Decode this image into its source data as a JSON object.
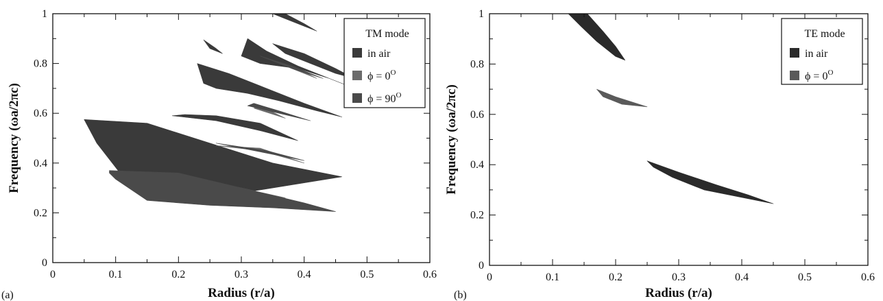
{
  "chart_data": [
    {
      "type": "area",
      "panel_label": "(a)",
      "xlabel": "Radius (r/a)",
      "ylabel": "Frequency (ωa/2πc)",
      "xlim": [
        0,
        0.6
      ],
      "ylim": [
        0,
        1
      ],
      "xticks": [
        "0",
        "0.1",
        "0.2",
        "0.3",
        "0.4",
        "0.5",
        "0.6"
      ],
      "yticks": [
        "0",
        "0.2",
        "0.4",
        "0.6",
        "0.8",
        "1"
      ],
      "legend": {
        "title": "TM mode",
        "position": "top-right",
        "entries": [
          {
            "label": "in air",
            "color": "#3a3a3a"
          },
          {
            "label": "ϕ = 0",
            "sup": "O",
            "color": "#6b6b6b"
          },
          {
            "label": "ϕ = 90",
            "sup": "O",
            "color": "#4a4a4a"
          }
        ]
      },
      "series": [
        {
          "name": "in air",
          "color": "#3a3a3a",
          "regions": [
            [
              [
                0.05,
                0.575
              ],
              [
                0.15,
                0.56
              ],
              [
                0.25,
                0.48
              ],
              [
                0.35,
                0.4
              ],
              [
                0.46,
                0.345
              ],
              [
                0.35,
                0.3
              ],
              [
                0.25,
                0.26
              ],
              [
                0.15,
                0.27
              ],
              [
                0.11,
                0.35
              ],
              [
                0.07,
                0.48
              ]
            ],
            [
              [
                0.19,
                0.59
              ],
              [
                0.26,
                0.57
              ],
              [
                0.33,
                0.53
              ],
              [
                0.39,
                0.49
              ],
              [
                0.33,
                0.56
              ],
              [
                0.26,
                0.59
              ],
              [
                0.21,
                0.595
              ]
            ],
            [
              [
                0.23,
                0.8
              ],
              [
                0.28,
                0.76
              ],
              [
                0.34,
                0.7
              ],
              [
                0.4,
                0.64
              ],
              [
                0.46,
                0.585
              ],
              [
                0.42,
                0.61
              ],
              [
                0.36,
                0.65
              ],
              [
                0.31,
                0.68
              ],
              [
                0.26,
                0.7
              ],
              [
                0.24,
                0.72
              ]
            ],
            [
              [
                0.31,
                0.9
              ],
              [
                0.34,
                0.85
              ],
              [
                0.39,
                0.79
              ],
              [
                0.44,
                0.74
              ],
              [
                0.48,
                0.7
              ],
              [
                0.44,
                0.74
              ],
              [
                0.39,
                0.78
              ],
              [
                0.33,
                0.8
              ],
              [
                0.3,
                0.83
              ]
            ],
            [
              [
                0.35,
                1.0
              ],
              [
                0.37,
                1.0
              ],
              [
                0.4,
                0.96
              ],
              [
                0.42,
                0.93
              ],
              [
                0.4,
                0.95
              ],
              [
                0.37,
                0.98
              ]
            ],
            [
              [
                0.35,
                0.88
              ],
              [
                0.4,
                0.84
              ],
              [
                0.45,
                0.78
              ],
              [
                0.48,
                0.74
              ],
              [
                0.45,
                0.76
              ],
              [
                0.41,
                0.8
              ],
              [
                0.37,
                0.84
              ]
            ],
            [
              [
                0.24,
                0.895
              ],
              [
                0.26,
                0.86
              ],
              [
                0.27,
                0.84
              ],
              [
                0.25,
                0.86
              ]
            ]
          ]
        },
        {
          "name": "ϕ = 0",
          "color": "#6b6b6b",
          "regions": [
            [
              [
                0.11,
                0.36
              ],
              [
                0.2,
                0.33
              ],
              [
                0.3,
                0.29
              ],
              [
                0.37,
                0.26
              ],
              [
                0.3,
                0.3
              ],
              [
                0.2,
                0.345
              ]
            ],
            [
              [
                0.26,
                0.47
              ],
              [
                0.33,
                0.45
              ],
              [
                0.4,
                0.4
              ],
              [
                0.33,
                0.46
              ]
            ],
            [
              [
                0.32,
                0.62
              ],
              [
                0.37,
                0.58
              ],
              [
                0.33,
                0.63
              ]
            ],
            [
              [
                0.38,
                0.78
              ],
              [
                0.42,
                0.74
              ],
              [
                0.39,
                0.78
              ]
            ]
          ]
        },
        {
          "name": "ϕ = 90",
          "color": "#4a4a4a",
          "regions": [
            [
              [
                0.09,
                0.37
              ],
              [
                0.2,
                0.36
              ],
              [
                0.3,
                0.3
              ],
              [
                0.4,
                0.24
              ],
              [
                0.45,
                0.205
              ],
              [
                0.35,
                0.22
              ],
              [
                0.25,
                0.23
              ],
              [
                0.15,
                0.25
              ],
              [
                0.1,
                0.335
              ],
              [
                0.09,
                0.36
              ]
            ],
            [
              [
                0.26,
                0.48
              ],
              [
                0.34,
                0.44
              ],
              [
                0.4,
                0.41
              ],
              [
                0.34,
                0.45
              ]
            ],
            [
              [
                0.31,
                0.63
              ],
              [
                0.36,
                0.6
              ],
              [
                0.41,
                0.57
              ],
              [
                0.36,
                0.61
              ],
              [
                0.32,
                0.64
              ]
            ],
            [
              [
                0.33,
                0.83
              ],
              [
                0.38,
                0.78
              ],
              [
                0.43,
                0.74
              ],
              [
                0.38,
                0.79
              ]
            ]
          ]
        }
      ]
    },
    {
      "type": "area",
      "panel_label": "(b)",
      "xlabel": "Radius (r/a)",
      "ylabel": "Frequency (ωa/2πc)",
      "xlim": [
        0,
        0.6
      ],
      "ylim": [
        0,
        1
      ],
      "xticks": [
        "0",
        "0.1",
        "0.2",
        "0.3",
        "0.4",
        "0.5",
        "0.6"
      ],
      "yticks": [
        "0",
        "0.2",
        "0.4",
        "0.6",
        "0.8",
        "1"
      ],
      "legend": {
        "title": "TE mode",
        "position": "top-right",
        "entries": [
          {
            "label": "in air",
            "color": "#2a2a2a"
          },
          {
            "label": "ϕ = 0",
            "sup": "O",
            "color": "#5a5a5a"
          }
        ]
      },
      "series": [
        {
          "name": "in air",
          "color": "#2a2a2a",
          "regions": [
            [
              [
                0.125,
                1.0
              ],
              [
                0.155,
                1.0
              ],
              [
                0.18,
                0.93
              ],
              [
                0.2,
                0.87
              ],
              [
                0.215,
                0.815
              ],
              [
                0.2,
                0.83
              ],
              [
                0.17,
                0.89
              ],
              [
                0.145,
                0.95
              ]
            ],
            [
              [
                0.25,
                0.415
              ],
              [
                0.3,
                0.37
              ],
              [
                0.36,
                0.32
              ],
              [
                0.41,
                0.28
              ],
              [
                0.45,
                0.245
              ],
              [
                0.4,
                0.27
              ],
              [
                0.34,
                0.3
              ],
              [
                0.29,
                0.35
              ],
              [
                0.26,
                0.39
              ]
            ]
          ]
        },
        {
          "name": "ϕ = 0",
          "color": "#5a5a5a",
          "regions": [
            [
              [
                0.17,
                0.7
              ],
              [
                0.2,
                0.67
              ],
              [
                0.25,
                0.63
              ],
              [
                0.21,
                0.64
              ],
              [
                0.18,
                0.67
              ]
            ]
          ]
        }
      ]
    }
  ]
}
